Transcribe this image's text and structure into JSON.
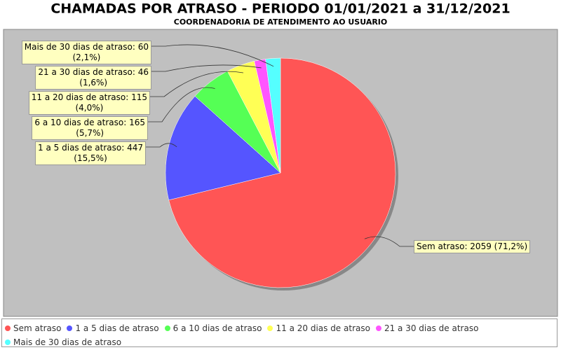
{
  "chart_data": {
    "type": "pie",
    "title": "CHAMADAS POR ATRASO - PERIODO 01/01/2021 a 31/12/2021",
    "subtitle": "COORDENADORIA DE ATENDIMENTO AO USUARIO",
    "categories": [
      "Sem atraso",
      "1 a 5 dias de atraso",
      "6 a 10 dias de atraso",
      "11 a 20 dias de atraso",
      "21 a 30 dias de atraso",
      "Mais de 30 dias de atraso"
    ],
    "values": [
      2059,
      447,
      165,
      115,
      46,
      60
    ],
    "value_labels": [
      "Sem atraso: 2059 (71,2%)",
      "1 a 5 dias de atraso: 447\n(15,5%)",
      "6 a 10 dias de atraso: 165\n(5,7%)",
      "11 a 20 dias de atraso: 115\n(4,0%)",
      "21 a 30 dias de atraso: 46\n(1,6%)",
      "Mais de 30 dias de atraso: 60\n(2,1%)"
    ],
    "colors": [
      "#ff5555",
      "#5555ff",
      "#55ff55",
      "#ffff55",
      "#ff55ff",
      "#55ffff"
    ],
    "legend": "bottom"
  }
}
